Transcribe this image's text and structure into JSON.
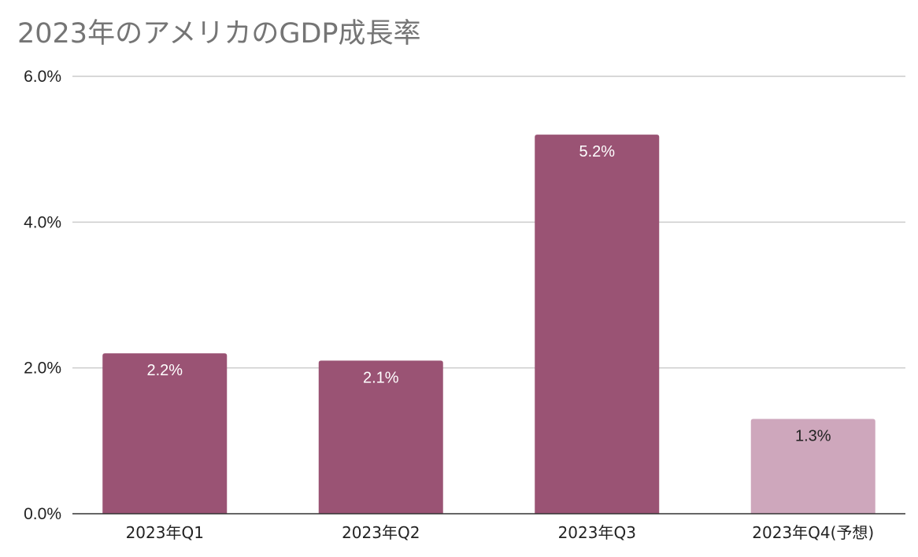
{
  "chart_data": {
    "type": "bar",
    "title": "2023年のアメリカのGDP成長率",
    "xlabel": "",
    "ylabel": "",
    "categories": [
      "2023年Q1",
      "2023年Q2",
      "2023年Q3",
      "2023年Q4(予想)"
    ],
    "values": [
      2.2,
      2.1,
      5.2,
      1.3
    ],
    "data_labels": [
      "2.2%",
      "2.1%",
      "5.2%",
      "1.3%"
    ],
    "bar_colors": [
      "#9a5374",
      "#9a5374",
      "#9a5374",
      "#cea7bc"
    ],
    "data_label_colors": [
      "#ffffff",
      "#ffffff",
      "#ffffff",
      "#222222"
    ],
    "ylim": [
      0,
      6
    ],
    "y_ticks": [
      0,
      2,
      4,
      6
    ],
    "y_tick_labels": [
      "0.0%",
      "2.0%",
      "4.0%",
      "6.0%"
    ],
    "grid": true,
    "legend": "none"
  }
}
